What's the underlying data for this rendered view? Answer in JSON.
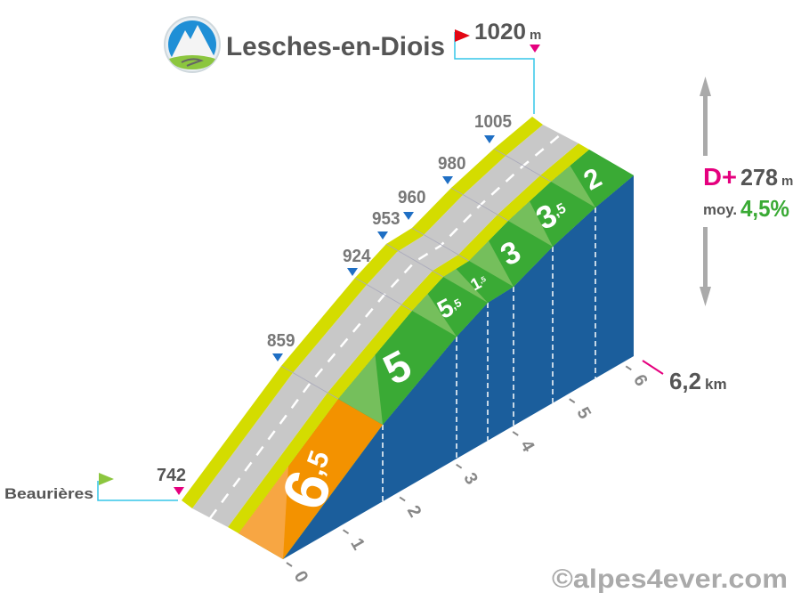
{
  "title": "Lesches-en-Diois",
  "start": {
    "name": "Beaurières",
    "altitude": "742"
  },
  "summit": {
    "altitude": "1020",
    "unit": "m"
  },
  "stats": {
    "dplus_label": "D+",
    "dplus_value": "278",
    "dplus_unit": "m",
    "avg_label": "moy.",
    "avg_value": "4,5%"
  },
  "distance": {
    "value": "6,2",
    "unit": "km"
  },
  "km_ticks": [
    "0",
    "1",
    "2",
    "3",
    "4",
    "5",
    "6"
  ],
  "altitude_markers": [
    "859",
    "924",
    "953",
    "960",
    "980",
    "1005"
  ],
  "gradients": [
    {
      "main": "6",
      "sub": ",5",
      "color": "#f39200"
    },
    {
      "main": "5",
      "sub": "",
      "color": "#3aaa35"
    },
    {
      "main": "5",
      "sub": ",5",
      "color": "#3aaa35"
    },
    {
      "main": "1",
      "sub": ",5",
      "color": "#3aaa35"
    },
    {
      "main": "3",
      "sub": "",
      "color": "#3aaa35"
    },
    {
      "main": "3",
      "sub": ",5",
      "color": "#3aaa35"
    },
    {
      "main": "2",
      "sub": "",
      "color": "#3aaa35"
    }
  ],
  "copyright": "©alpes4ever.com",
  "colors": {
    "side": "#1b5e9c",
    "road": "#c8c8c8",
    "shoulder": "#d4dc00",
    "pink": "#e5007e",
    "cyan": "#35c6e8",
    "text": "#555555",
    "green_text": "#3aaa35"
  }
}
